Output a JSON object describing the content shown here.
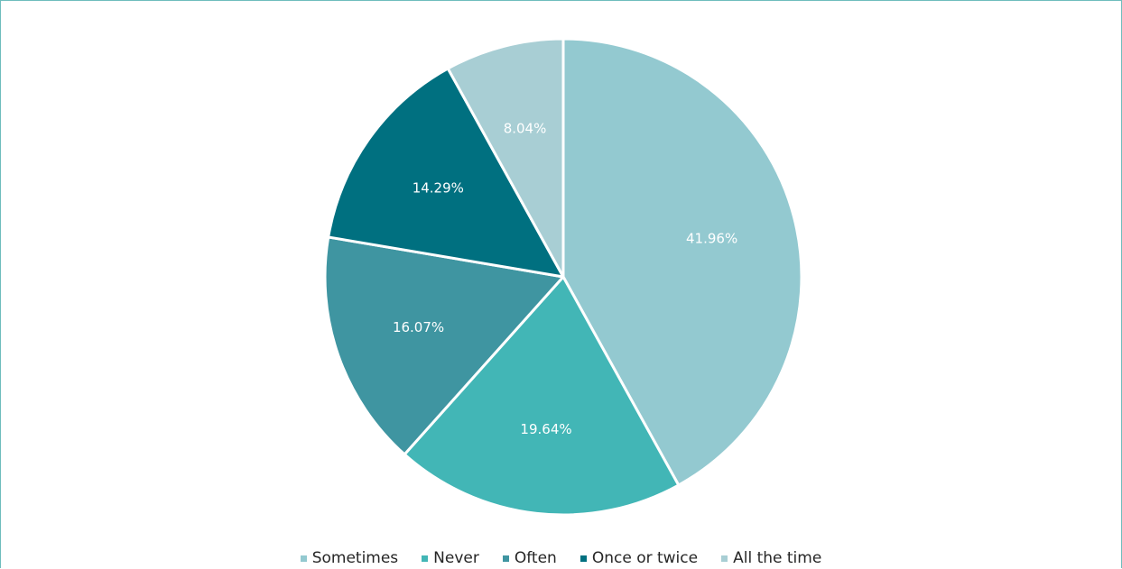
{
  "chart_data": {
    "type": "pie",
    "title": "",
    "slices": [
      {
        "name": "Sometimes",
        "value": 41.96,
        "label": "41.96%",
        "color": "#93c9d0"
      },
      {
        "name": "Never",
        "value": 19.64,
        "label": "19.64%",
        "color": "#42b6b6"
      },
      {
        "name": "Often",
        "value": 16.07,
        "label": "16.07%",
        "color": "#3f95a1"
      },
      {
        "name": "Once or twice",
        "value": 14.29,
        "label": "14.29%",
        "color": "#007080"
      },
      {
        "name": "All the time",
        "value": 8.04,
        "label": "8.04%",
        "color": "#a8ced4"
      }
    ],
    "legend_placement": "bottom"
  }
}
